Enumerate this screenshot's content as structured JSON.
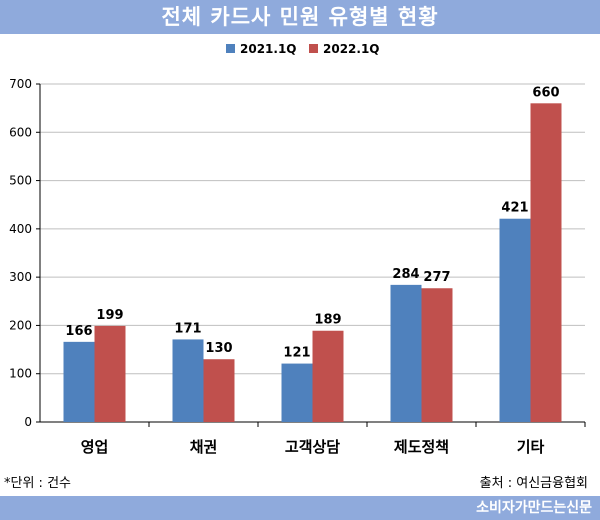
{
  "title": "전체 카드사 민원 유형별 현황",
  "unit_note": "*단위 : 건수",
  "source_note": "출처 : 여신금융협회",
  "brand": "소비자가만드는신문",
  "colors": {
    "series1": "#4f81bd",
    "series2": "#c0504d",
    "banner": "#8faadc"
  },
  "chart_data": {
    "type": "bar",
    "categories": [
      "영업",
      "채권",
      "고객상담",
      "제도정책",
      "기타"
    ],
    "series": [
      {
        "name": "2021.1Q",
        "values": [
          166,
          171,
          121,
          284,
          421
        ]
      },
      {
        "name": "2022.1Q",
        "values": [
          199,
          130,
          189,
          277,
          660
        ]
      }
    ],
    "ylim": [
      0,
      700
    ],
    "yticks": [
      0,
      100,
      200,
      300,
      400,
      500,
      600,
      700
    ],
    "legend": "top-center",
    "grid": true
  }
}
